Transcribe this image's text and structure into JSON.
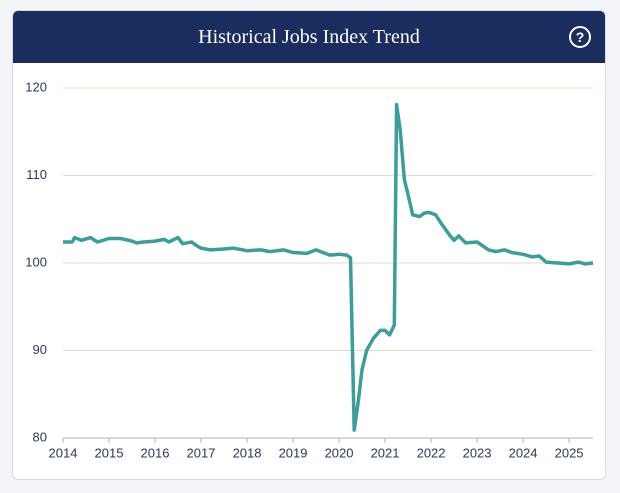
{
  "chart_data": {
    "type": "line",
    "title": "Historical Jobs Index Trend",
    "x": [
      2014.0,
      2014.2,
      2014.25,
      2014.4,
      2014.6,
      2014.75,
      2015.0,
      2015.25,
      2015.5,
      2015.6,
      2015.75,
      2016.0,
      2016.2,
      2016.3,
      2016.5,
      2016.6,
      2016.8,
      2016.9,
      2017.0,
      2017.2,
      2017.5,
      2017.7,
      2018.0,
      2018.3,
      2018.5,
      2018.8,
      2019.0,
      2019.3,
      2019.5,
      2019.8,
      2020.0,
      2020.17,
      2020.25,
      2020.33,
      2020.42,
      2020.5,
      2020.6,
      2020.75,
      2020.9,
      2021.0,
      2021.1,
      2021.2,
      2021.25,
      2021.33,
      2021.42,
      2021.5,
      2021.6,
      2021.75,
      2021.85,
      2021.95,
      2022.1,
      2022.25,
      2022.4,
      2022.5,
      2022.6,
      2022.75,
      2023.0,
      2023.25,
      2023.4,
      2023.6,
      2023.75,
      2024.0,
      2024.2,
      2024.35,
      2024.5,
      2024.75,
      2025.0,
      2025.2,
      2025.35,
      2025.52
    ],
    "series": [
      {
        "name": "Jobs Index",
        "color": "#3a9e9b",
        "values": [
          102.4,
          102.4,
          102.9,
          102.6,
          102.9,
          102.4,
          102.8,
          102.8,
          102.5,
          102.3,
          102.4,
          102.5,
          102.7,
          102.4,
          102.9,
          102.2,
          102.4,
          102.0,
          101.7,
          101.5,
          101.6,
          101.7,
          101.4,
          101.5,
          101.3,
          101.5,
          101.2,
          101.1,
          101.5,
          100.9,
          101.0,
          100.9,
          100.6,
          80.9,
          84.3,
          87.8,
          90.0,
          91.4,
          92.3,
          92.3,
          91.8,
          92.9,
          118.1,
          115.2,
          109.5,
          107.8,
          105.5,
          105.3,
          105.7,
          105.8,
          105.5,
          104.3,
          103.2,
          102.6,
          103.1,
          102.3,
          102.4,
          101.5,
          101.3,
          101.5,
          101.2,
          101.0,
          100.7,
          100.8,
          100.1,
          100.0,
          99.9,
          100.1,
          99.9,
          100.0
        ]
      }
    ],
    "xlim": [
      2014,
      2025.52
    ],
    "xticks": [
      2014,
      2015,
      2016,
      2017,
      2018,
      2019,
      2020,
      2021,
      2022,
      2023,
      2024,
      2025
    ],
    "ylim": [
      80,
      120
    ],
    "yticks": [
      80,
      90,
      100,
      110,
      120
    ],
    "grid": true
  }
}
